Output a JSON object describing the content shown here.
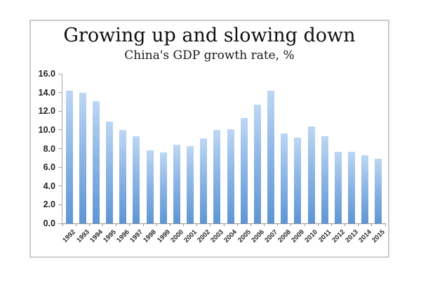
{
  "chart_data": {
    "type": "bar",
    "title": "Growing up and slowing down",
    "subtitle": "China's GDP growth rate, %",
    "categories": [
      "1992",
      "1993",
      "1994",
      "1995",
      "1996",
      "1997",
      "1998",
      "1999",
      "2000",
      "2001",
      "2002",
      "2003",
      "2004",
      "2005",
      "2006",
      "2007",
      "2008",
      "2009",
      "2010",
      "2011",
      "2012",
      "2013",
      "2014",
      "2015"
    ],
    "values": [
      14.2,
      14.0,
      13.1,
      10.9,
      10.0,
      9.3,
      7.8,
      7.6,
      8.4,
      8.3,
      9.1,
      10.0,
      10.1,
      11.3,
      12.7,
      14.2,
      9.6,
      9.2,
      10.4,
      9.3,
      7.7,
      7.7,
      7.3,
      6.9
    ],
    "xlabel": "",
    "ylabel": "",
    "ylim": [
      0,
      16
    ],
    "ytick_step": 2,
    "ytick_labels": [
      "0.0",
      "2.0",
      "4.0",
      "6.0",
      "8.0",
      "10.0",
      "12.0",
      "14.0",
      "16.0"
    ],
    "grid": false,
    "legend": "none",
    "colors": {
      "bar_gradient_top": "#bdd7f3",
      "bar_gradient_bottom": "#5e96d3",
      "axis_line": "#a8a8a8",
      "tick_text": "#1f1f1f",
      "title_text": "#101010",
      "frame_border": "#cbcbcb"
    }
  }
}
